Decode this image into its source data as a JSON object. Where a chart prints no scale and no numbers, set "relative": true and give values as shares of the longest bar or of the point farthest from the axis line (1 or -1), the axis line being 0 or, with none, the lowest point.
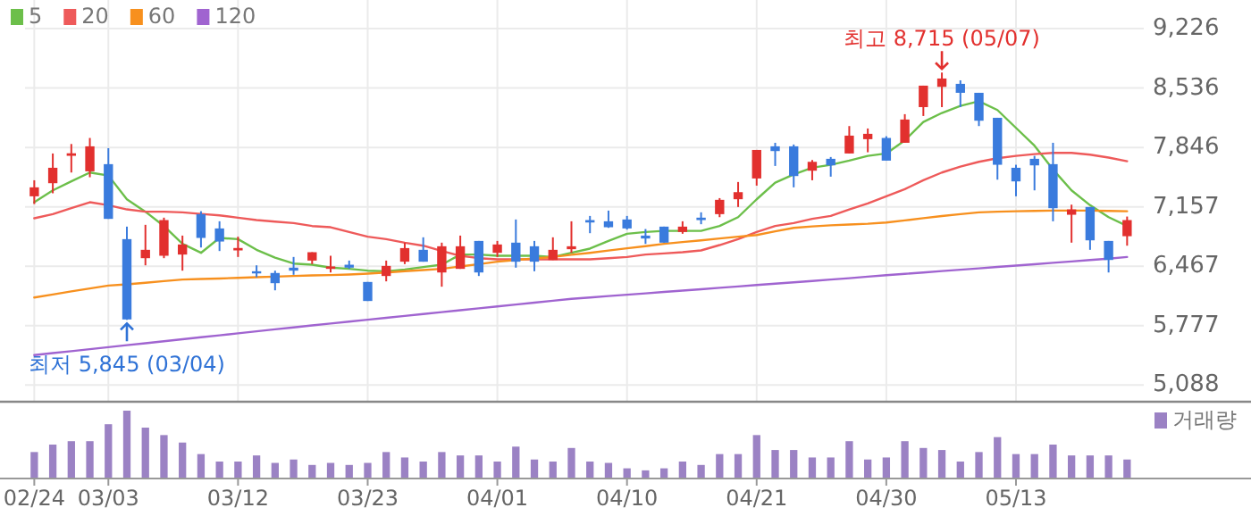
{
  "chart_data": [
    {
      "type": "candlestick",
      "categories": [
        "02/24",
        null,
        null,
        null,
        "03/03",
        null,
        null,
        null,
        null,
        null,
        null,
        "03/12",
        null,
        null,
        null,
        null,
        null,
        null,
        "03/23",
        null,
        null,
        null,
        null,
        null,
        null,
        "04/01",
        null,
        null,
        null,
        null,
        null,
        null,
        "04/10",
        null,
        null,
        null,
        null,
        null,
        null,
        "04/21",
        null,
        null,
        null,
        null,
        null,
        null,
        "04/30",
        null,
        null,
        null,
        null,
        null,
        null,
        "05/13",
        null,
        null,
        null,
        null,
        null,
        null
      ],
      "ohlc": [
        [
          7279,
          7465,
          7189,
          7383
        ],
        [
          7431,
          7776,
          7314,
          7610
        ],
        [
          7749,
          7886,
          7555,
          7778
        ],
        [
          7569,
          7956,
          7500,
          7859
        ],
        [
          7652,
          7838,
          7017,
          7017
        ],
        [
          6782,
          6927,
          5845,
          5850
        ],
        [
          6561,
          6948,
          6478,
          6658
        ],
        [
          6589,
          7031,
          6561,
          7003
        ],
        [
          6603,
          6823,
          6416,
          6720
        ],
        [
          7072,
          7106,
          6685,
          6796
        ],
        [
          6906,
          6989,
          6644,
          6754
        ],
        [
          6651,
          6810,
          6575,
          6679
        ],
        [
          6409,
          6478,
          6340,
          6395
        ],
        [
          6389,
          6416,
          6188,
          6271
        ],
        [
          6451,
          6575,
          6368,
          6416
        ],
        [
          6533,
          6630,
          6492,
          6630
        ],
        [
          6437,
          6589,
          6395,
          6465
        ],
        [
          6485,
          6533,
          6437,
          6451
        ],
        [
          6285,
          6285,
          6064,
          6064
        ],
        [
          6354,
          6533,
          6292,
          6471
        ],
        [
          6520,
          6741,
          6492,
          6678
        ],
        [
          6658,
          6803,
          6520,
          6520
        ],
        [
          6395,
          6741,
          6230,
          6699
        ],
        [
          6437,
          6823,
          6437,
          6699
        ],
        [
          6761,
          6761,
          6354,
          6395
        ],
        [
          6623,
          6761,
          6575,
          6720
        ],
        [
          6741,
          7010,
          6451,
          6520
        ],
        [
          6699,
          6761,
          6409,
          6520
        ],
        [
          6540,
          6803,
          6540,
          6658
        ],
        [
          6665,
          6989,
          6623,
          6699
        ],
        [
          7003,
          7051,
          6851,
          6975
        ],
        [
          6989,
          7113,
          6913,
          6920
        ],
        [
          7010,
          7051,
          6892,
          6906
        ],
        [
          6823,
          6899,
          6727,
          6789
        ],
        [
          6927,
          6927,
          6741,
          6741
        ],
        [
          6865,
          6989,
          6844,
          6927
        ],
        [
          7031,
          7093,
          6955,
          7003
        ],
        [
          7072,
          7258,
          7037,
          7238
        ],
        [
          7245,
          7445,
          7155,
          7327
        ],
        [
          7486,
          7817,
          7403,
          7817
        ],
        [
          7859,
          7900,
          7631,
          7804
        ],
        [
          7859,
          7880,
          7383,
          7514
        ],
        [
          7576,
          7700,
          7465,
          7679
        ],
        [
          7714,
          7735,
          7507,
          7638
        ],
        [
          7776,
          8094,
          7776,
          7983
        ],
        [
          7942,
          8066,
          7790,
          8004
        ],
        [
          7956,
          7976,
          7693,
          7693
        ],
        [
          7900,
          8232,
          7900,
          8170
        ],
        [
          8314,
          8563,
          8211,
          8563
        ],
        [
          8549,
          8715,
          8314,
          8646
        ],
        [
          8584,
          8625,
          8314,
          8480
        ],
        [
          8480,
          8480,
          8094,
          8156
        ],
        [
          8190,
          8190,
          7472,
          7645
        ],
        [
          7610,
          7645,
          7279,
          7452
        ],
        [
          7714,
          7748,
          7348,
          7638
        ],
        [
          7652,
          7900,
          6989,
          7141
        ],
        [
          7065,
          7182,
          6741,
          7127
        ],
        [
          7155,
          7155,
          6658,
          6768
        ],
        [
          6761,
          6761,
          6395,
          6540
        ],
        [
          6816,
          7044,
          6706,
          7003
        ]
      ],
      "colors": [
        "#e2302e",
        "#e2302e",
        "#e2302e",
        "#e2302e",
        "#3a7bdd",
        "#3a7bdd",
        "#e2302e",
        "#e2302e",
        "#e2302e",
        "#3a7bdd",
        "#3a7bdd",
        "#e2302e",
        "#3a7bdd",
        "#3a7bdd",
        "#3a7bdd",
        "#e2302e",
        "#e2302e",
        "#3a7bdd",
        "#3a7bdd",
        "#e2302e",
        "#e2302e",
        "#3a7bdd",
        "#e2302e",
        "#e2302e",
        "#3a7bdd",
        "#e2302e",
        "#3a7bdd",
        "#3a7bdd",
        "#e2302e",
        "#e2302e",
        "#3a7bdd",
        "#3a7bdd",
        "#3a7bdd",
        "#3a7bdd",
        "#3a7bdd",
        "#e2302e",
        "#3a7bdd",
        "#e2302e",
        "#e2302e",
        "#e2302e",
        "#3a7bdd",
        "#3a7bdd",
        "#e2302e",
        "#3a7bdd",
        "#e2302e",
        "#e2302e",
        "#3a7bdd",
        "#e2302e",
        "#e2302e",
        "#e2302e",
        "#3a7bdd",
        "#3a7bdd",
        "#3a7bdd",
        "#3a7bdd",
        "#3a7bdd",
        "#3a7bdd",
        "#e2302e",
        "#3a7bdd",
        "#3a7bdd",
        "#e2302e"
      ],
      "series": [
        {
          "name": "5",
          "type": "line",
          "color": "#6cbf4a",
          "values": [
            7210,
            7348,
            7452,
            7555,
            7520,
            7244,
            7100,
            6934,
            6727,
            6623,
            6796,
            6782,
            6658,
            6568,
            6499,
            6485,
            6451,
            6437,
            6416,
            6409,
            6430,
            6458,
            6485,
            6603,
            6603,
            6589,
            6589,
            6589,
            6575,
            6623,
            6672,
            6761,
            6844,
            6865,
            6878,
            6878,
            6878,
            6934,
            7037,
            7244,
            7438,
            7534,
            7610,
            7645,
            7693,
            7748,
            7776,
            7928,
            8142,
            8246,
            8328,
            8383,
            8280,
            8073,
            7866,
            7590,
            7348,
            7176,
            7037,
            6934
          ]
        },
        {
          "name": "20",
          "type": "line",
          "color": "#ee5a5a",
          "values": [
            7024,
            7072,
            7141,
            7210,
            7176,
            7127,
            7100,
            7100,
            7093,
            7075,
            7058,
            7030,
            7003,
            6985,
            6968,
            6934,
            6920,
            6865,
            6810,
            6782,
            6741,
            6706,
            6644,
            6589,
            6561,
            6547,
            6547,
            6547,
            6547,
            6547,
            6547,
            6561,
            6575,
            6603,
            6616,
            6630,
            6651,
            6713,
            6782,
            6865,
            6934,
            6968,
            7017,
            7051,
            7127,
            7196,
            7279,
            7362,
            7465,
            7555,
            7624,
            7679,
            7721,
            7748,
            7769,
            7783,
            7783,
            7762,
            7728,
            7686
          ]
        },
        {
          "name": "60",
          "type": "line",
          "color": "#f7901e",
          "values": [
            6105,
            6140,
            6175,
            6210,
            6243,
            6257,
            6275,
            6295,
            6313,
            6320,
            6325,
            6333,
            6340,
            6347,
            6354,
            6361,
            6365,
            6372,
            6382,
            6395,
            6410,
            6423,
            6437,
            6465,
            6492,
            6520,
            6540,
            6558,
            6575,
            6600,
            6623,
            6650,
            6675,
            6700,
            6727,
            6748,
            6768,
            6789,
            6810,
            6830,
            6872,
            6913,
            6930,
            6942,
            6952,
            6961,
            6975,
            7000,
            7025,
            7050,
            7072,
            7093,
            7100,
            7106,
            7110,
            7113,
            7113,
            7113,
            7110,
            7106
          ]
        },
        {
          "name": "120",
          "type": "line",
          "color": "#a064d0",
          "values": [
            5436,
            5459,
            5482,
            5505,
            5528,
            5551,
            5574,
            5597,
            5620,
            5643,
            5666,
            5689,
            5712,
            5735,
            5758,
            5781,
            5803,
            5825,
            5847,
            5869,
            5891,
            5913,
            5935,
            5957,
            5979,
            6001,
            6023,
            6045,
            6067,
            6089,
            6105,
            6121,
            6137,
            6153,
            6169,
            6185,
            6201,
            6217,
            6233,
            6249,
            6265,
            6281,
            6297,
            6313,
            6329,
            6347,
            6363,
            6379,
            6395,
            6411,
            6427,
            6443,
            6459,
            6475,
            6491,
            6507,
            6523,
            6539,
            6555,
            6575
          ]
        }
      ],
      "ylim": [
        4895,
        9557
      ],
      "yticks": [
        {
          "value": 5088,
          "label": "5,088"
        },
        {
          "value": 5777,
          "label": "5,777"
        },
        {
          "value": 6467,
          "label": "6,467"
        },
        {
          "value": 7157,
          "label": "7,157"
        },
        {
          "value": 7846,
          "label": "7,846"
        },
        {
          "value": 8536,
          "label": "8,536"
        },
        {
          "value": 9226,
          "label": "9,226"
        }
      ],
      "annotations": [
        {
          "text": "최고 8,715 (05/07)",
          "y": 8715
        },
        {
          "text": "최저 5,845 (03/04)",
          "y": 5845
        }
      ],
      "grid": true,
      "legend": "top left"
    },
    {
      "type": "bar",
      "relative": true,
      "categories": [
        null,
        null,
        null,
        null,
        null,
        null,
        null,
        null,
        null,
        null,
        null,
        null,
        null,
        null,
        null,
        null,
        null,
        null,
        null,
        null,
        null,
        null,
        null,
        null,
        null,
        null,
        null,
        null,
        null,
        null,
        null,
        null,
        null,
        null,
        null,
        null,
        null,
        null,
        null,
        null,
        null,
        null,
        null,
        null,
        null,
        null,
        null,
        null,
        null,
        null,
        null,
        null,
        null,
        null,
        null,
        null,
        null,
        null,
        null,
        null
      ],
      "series": [
        {
          "name": "거래량",
          "color": "#9b82c4",
          "values": [
            0.39,
            0.5,
            0.55,
            0.55,
            0.8,
            1,
            0.75,
            0.64,
            0.53,
            0.36,
            0.25,
            0.25,
            0.34,
            0.23,
            0.28,
            0.2,
            0.23,
            0.2,
            0.23,
            0.39,
            0.31,
            0.25,
            0.39,
            0.34,
            0.34,
            0.25,
            0.47,
            0.28,
            0.25,
            0.45,
            0.25,
            0.23,
            0.15,
            0.12,
            0.15,
            0.25,
            0.2,
            0.36,
            0.36,
            0.64,
            0.42,
            0.42,
            0.31,
            0.31,
            0.55,
            0.28,
            0.31,
            0.55,
            0.45,
            0.42,
            0.25,
            0.39,
            0.61,
            0.36,
            0.36,
            0.5,
            0.34,
            0.34,
            0.34,
            0.28
          ]
        }
      ],
      "legend": "top right"
    }
  ]
}
